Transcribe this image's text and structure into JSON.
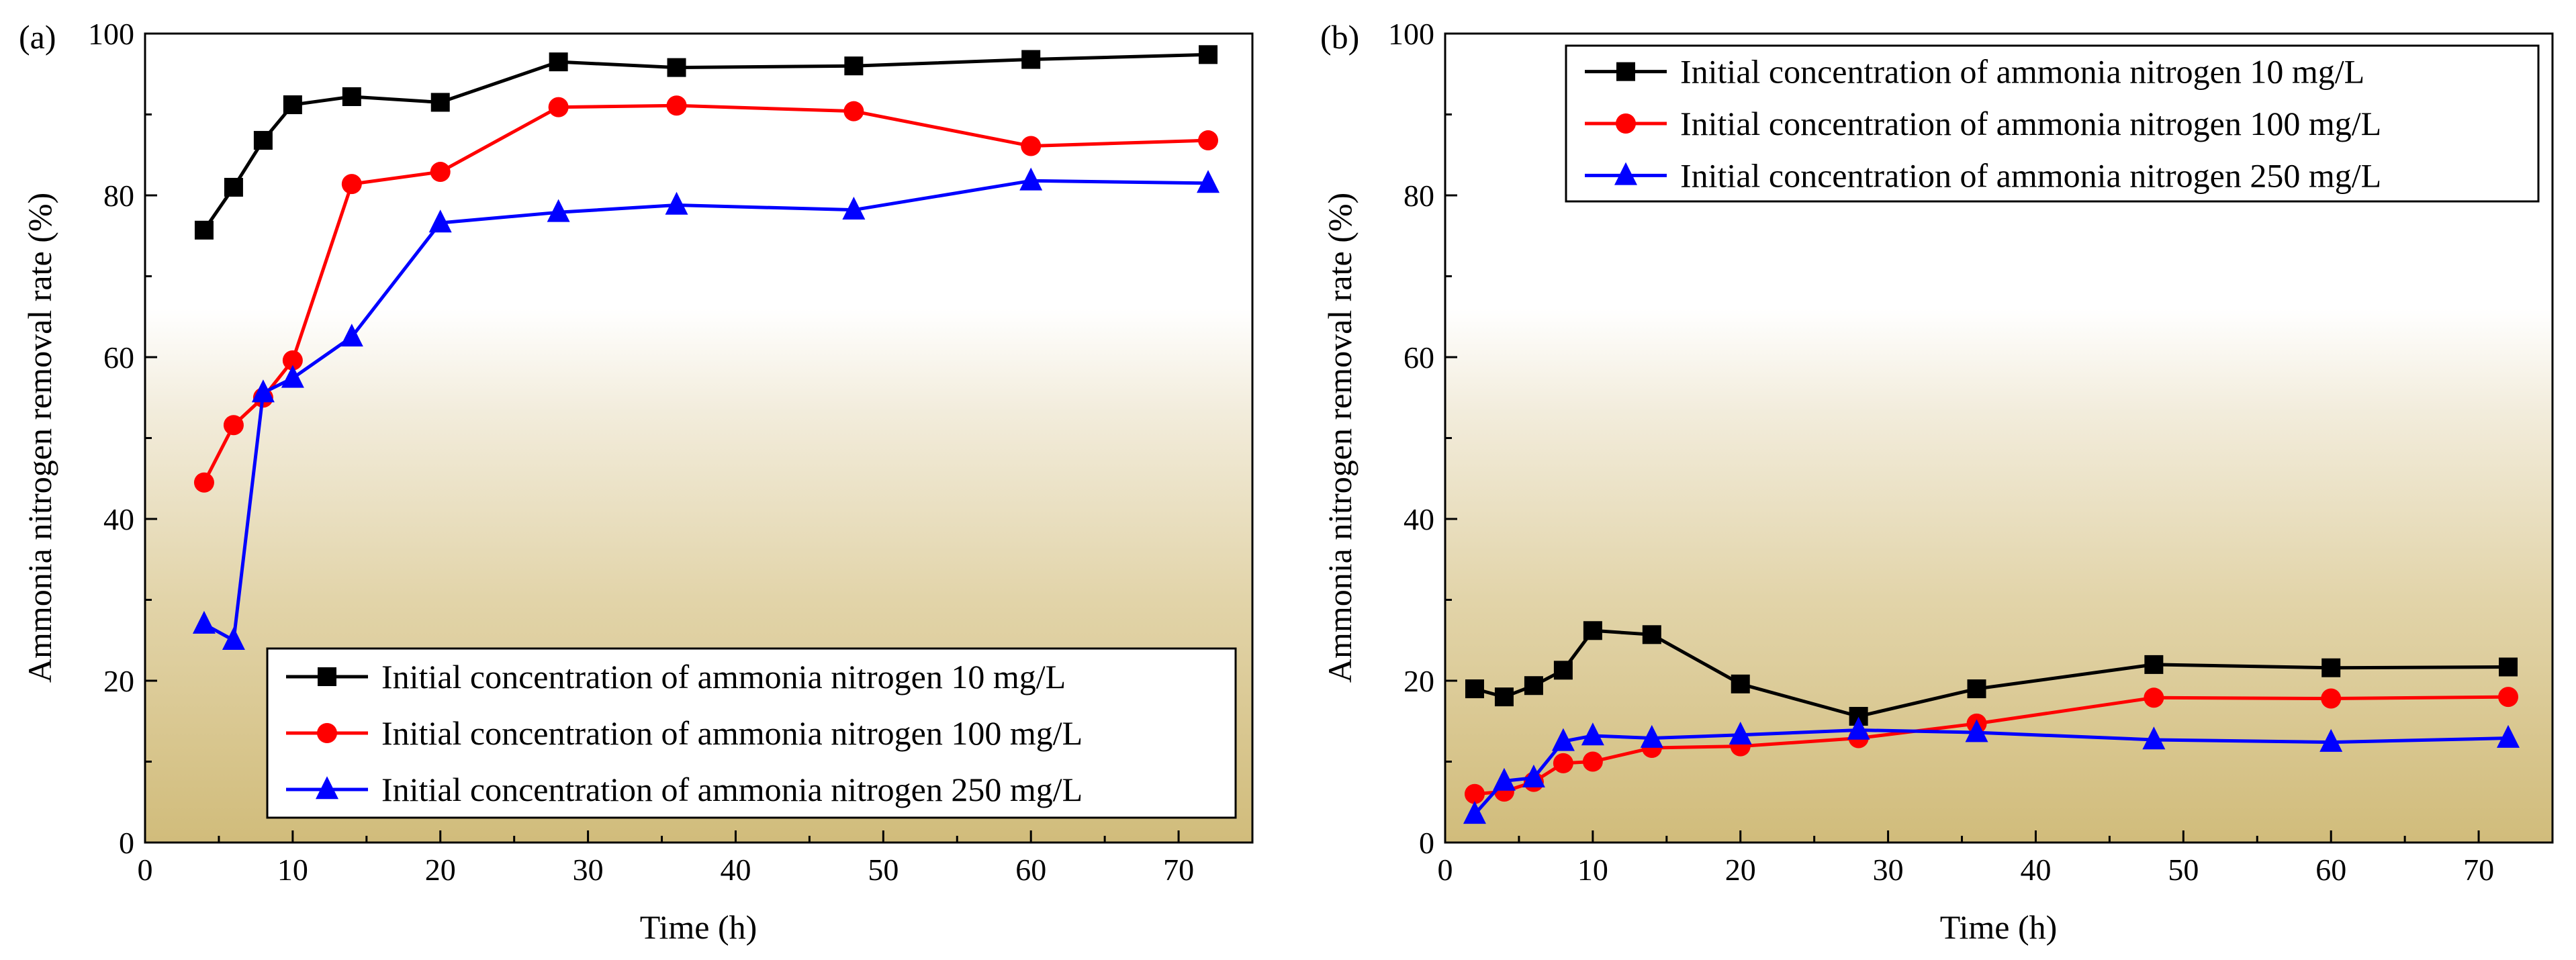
{
  "chart_data": [
    {
      "panel": "(a)",
      "type": "line",
      "xlabel": "Time (h)",
      "ylabel": "Ammonia nitrogen removal rate (%)",
      "xlim": [
        0,
        75
      ],
      "ylim": [
        0,
        100
      ],
      "xticks": [
        0,
        10,
        20,
        30,
        40,
        50,
        60,
        70
      ],
      "yticks": [
        0,
        20,
        40,
        60,
        80,
        100
      ],
      "legend_position": "bottom-right",
      "series": [
        {
          "name": "Initial concentration of ammonia nitrogen 10 mg/L",
          "color": "#000000",
          "marker": "square",
          "x": [
            4,
            6,
            8,
            10,
            14,
            20,
            28,
            36,
            48,
            60,
            72
          ],
          "y": [
            75.7,
            81.0,
            86.8,
            91.2,
            92.2,
            91.5,
            96.5,
            95.8,
            96.0,
            96.8,
            97.4
          ]
        },
        {
          "name": "Initial concentration of ammonia nitrogen 100 mg/L",
          "color": "#ff0000",
          "marker": "circle",
          "x": [
            4,
            6,
            8,
            10,
            14,
            20,
            28,
            36,
            48,
            60,
            72
          ],
          "y": [
            44.5,
            51.6,
            55.0,
            59.6,
            81.4,
            82.9,
            90.9,
            91.1,
            90.4,
            86.1,
            86.8
          ]
        },
        {
          "name": "Initial concentration of ammonia nitrogen 250 mg/L",
          "color": "#0000ff",
          "marker": "triangle",
          "x": [
            4,
            6,
            8,
            10,
            14,
            20,
            28,
            36,
            48,
            60,
            72
          ],
          "y": [
            27.0,
            25.0,
            55.6,
            57.4,
            62.5,
            76.6,
            77.9,
            78.8,
            78.2,
            81.8,
            81.5
          ]
        }
      ]
    },
    {
      "panel": "(b)",
      "type": "line",
      "xlabel": "Time (h)",
      "ylabel": "Ammonia nitrogen removal rate (%)",
      "xlim": [
        0,
        75
      ],
      "ylim": [
        0,
        100
      ],
      "xticks": [
        0,
        10,
        20,
        30,
        40,
        50,
        60,
        70
      ],
      "yticks": [
        0,
        20,
        40,
        60,
        80,
        100
      ],
      "legend_position": "top-right",
      "series": [
        {
          "name": "Initial concentration of ammonia nitrogen 10 mg/L",
          "color": "#000000",
          "marker": "square",
          "x": [
            2,
            4,
            6,
            8,
            10,
            14,
            20,
            28,
            36,
            48,
            60,
            72
          ],
          "y": [
            19.0,
            18.0,
            19.4,
            21.3,
            26.2,
            25.7,
            19.6,
            15.6,
            19.0,
            22.0,
            21.6,
            21.7
          ]
        },
        {
          "name": "Initial concentration of ammonia nitrogen 100 mg/L",
          "color": "#ff0000",
          "marker": "circle",
          "x": [
            2,
            4,
            6,
            8,
            10,
            14,
            20,
            28,
            36,
            48,
            60,
            72
          ],
          "y": [
            6.0,
            6.3,
            7.5,
            9.8,
            10.0,
            11.7,
            11.9,
            12.9,
            14.7,
            17.9,
            17.8,
            18.0
          ]
        },
        {
          "name": "Initial concentration of ammonia nitrogen 250 mg/L",
          "color": "#0000ff",
          "marker": "triangle",
          "x": [
            2,
            4,
            6,
            8,
            10,
            14,
            20,
            28,
            36,
            48,
            60,
            72
          ],
          "y": [
            3.5,
            7.6,
            8.0,
            12.5,
            13.2,
            12.9,
            13.3,
            13.9,
            13.6,
            12.7,
            12.4,
            12.9
          ]
        }
      ]
    }
  ]
}
